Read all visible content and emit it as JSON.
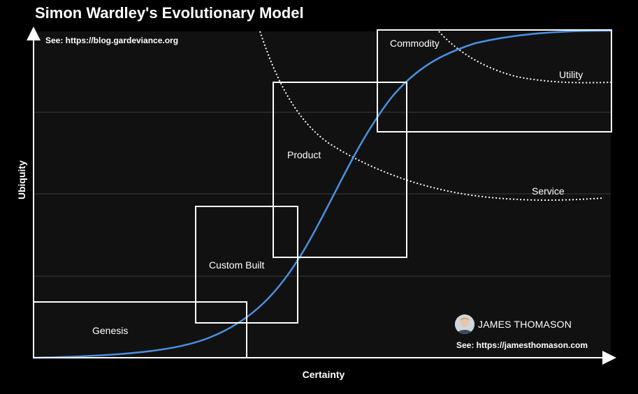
{
  "title": "Simon Wardley's Evolutionary Model",
  "source_note": "See: https://blog.gardeviance.org",
  "x_axis_label": "Certainty",
  "y_axis_label": "Ubiquity",
  "stages": [
    {
      "label": "Genesis"
    },
    {
      "label": "Custom Built"
    },
    {
      "label": "Product"
    },
    {
      "label": "Commodity"
    }
  ],
  "curve_labels": {
    "service": "Service",
    "utility": "Utility"
  },
  "credit": {
    "name": "JAMES THOMASON",
    "url_note": "See: https://jamesthomason.com"
  },
  "colors": {
    "background": "#000000",
    "plot_background": "#111111",
    "gridline": "#3a3a3a",
    "evolution_curve": "#4a90e2",
    "boxes": "#ffffff",
    "dotted_curves": "#ffffff"
  },
  "icons": [
    "avatar-icon"
  ]
}
